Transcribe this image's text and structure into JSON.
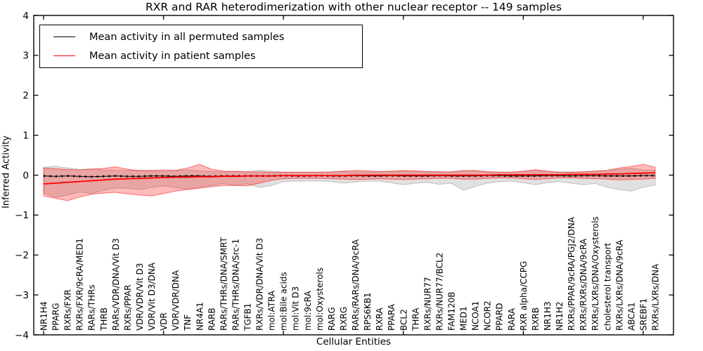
{
  "figure": {
    "title": "RXR and RAR heterodimerization with other nuclear receptor -- 149 samples",
    "xlabel": "Cellular Entities",
    "ylabel": "Inferred Activity"
  },
  "chart_data": {
    "type": "line",
    "title": "RXR and RAR heterodimerization with other nuclear receptor -- 149 samples",
    "xlabel": "Cellular Entities",
    "ylabel": "Inferred Activity",
    "ylim": [
      -4,
      4
    ],
    "yticks": [
      -4,
      -3,
      -2,
      -1,
      0,
      1,
      2,
      3,
      4
    ],
    "grid": false,
    "legend_position": "upper left",
    "categories": [
      "NR1H4",
      "PPARG",
      "RXRs/FXR",
      "RXRs/FXR/9cRA/MED1",
      "RARs/THRs",
      "THRB",
      "RARs/VDR/DNA/Vit D3",
      "RXRs/PPAR",
      "VDR/VDR/Vit D3",
      "VDR/Vit D3/DNA",
      "VDR",
      "VDR/VDR/DNA",
      "TNF",
      "NR4A1",
      "RARB",
      "RARs/THRs/DNA/SMRT",
      "RARs/THRs/DNA/Src-1",
      "TGFB1",
      "RXRs/VDR/DNA/Vit D3",
      "mol:ATRA",
      "mol:Bile acids",
      "mol:Vit D3",
      "mol:9cRA",
      "mol:Oxysterols",
      "RARG",
      "RXRG",
      "RARs/RARs/DNA/9cRA",
      "RPS6KB1",
      "RXRA",
      "PPARA",
      "BCL2",
      "THRA",
      "RXRs/NUR77",
      "RXRs/NUR77/BCL2",
      "FAM120B",
      "MED1",
      "NCOA1",
      "NCOR2",
      "PPARD",
      "RARA",
      "RXR alpha/CCPG",
      "RXRB",
      "NR1H3",
      "NR1H2",
      "RXRs/PPAR/9cRA/PGJ2/DNA",
      "RXRs/RXRs/DNA/9cRA",
      "RXRs/LXRs/DNA/Oxysterols",
      "cholesterol transport",
      "RXRs/LXRs/DNA/9cRA",
      "ABCA1",
      "SREBF1",
      "RXRs/LXRs/DNA"
    ],
    "series": [
      {
        "name": "Mean activity in all permuted samples",
        "color": "#000000",
        "band_color": "#909090",
        "values": [
          -0.02,
          -0.03,
          -0.02,
          -0.03,
          -0.04,
          -0.03,
          -0.02,
          -0.03,
          -0.03,
          -0.02,
          -0.02,
          -0.03,
          -0.02,
          -0.02,
          -0.03,
          -0.02,
          -0.02,
          -0.02,
          -0.02,
          -0.02,
          -0.01,
          -0.02,
          -0.02,
          -0.01,
          -0.02,
          -0.02,
          -0.01,
          -0.02,
          -0.02,
          -0.01,
          -0.02,
          -0.02,
          -0.02,
          -0.01,
          -0.02,
          -0.02,
          -0.02,
          -0.01,
          -0.01,
          -0.02,
          -0.02,
          -0.02,
          -0.01,
          -0.01,
          -0.02,
          -0.01,
          -0.01,
          -0.02,
          -0.02,
          -0.02,
          -0.01,
          -0.01
        ],
        "band_upper": [
          0.2,
          0.22,
          0.18,
          0.14,
          0.16,
          0.13,
          0.12,
          0.12,
          0.13,
          0.11,
          0.09,
          0.11,
          0.13,
          0.11,
          0.09,
          0.08,
          0.1,
          0.09,
          0.12,
          0.1,
          0.08,
          0.08,
          0.08,
          0.08,
          0.08,
          0.09,
          0.08,
          0.08,
          0.08,
          0.09,
          0.1,
          0.09,
          0.08,
          0.09,
          0.08,
          0.12,
          0.1,
          0.08,
          0.08,
          0.08,
          0.09,
          0.11,
          0.09,
          0.08,
          0.08,
          0.09,
          0.1,
          0.12,
          0.15,
          0.17,
          0.13,
          0.12
        ],
        "band_lower": [
          -0.45,
          -0.55,
          -0.5,
          -0.42,
          -0.46,
          -0.38,
          -0.32,
          -0.33,
          -0.36,
          -0.31,
          -0.27,
          -0.31,
          -0.35,
          -0.3,
          -0.26,
          -0.21,
          -0.26,
          -0.22,
          -0.31,
          -0.26,
          -0.16,
          -0.15,
          -0.15,
          -0.15,
          -0.16,
          -0.2,
          -0.17,
          -0.15,
          -0.15,
          -0.19,
          -0.24,
          -0.2,
          -0.18,
          -0.23,
          -0.2,
          -0.38,
          -0.28,
          -0.2,
          -0.16,
          -0.15,
          -0.19,
          -0.24,
          -0.19,
          -0.16,
          -0.2,
          -0.24,
          -0.21,
          -0.3,
          -0.36,
          -0.4,
          -0.3,
          -0.25
        ]
      },
      {
        "name": "Mean activity in patient samples",
        "color": "#ff0000",
        "band_color": "#ff0000",
        "values": [
          -0.22,
          -0.2,
          -0.18,
          -0.16,
          -0.14,
          -0.12,
          -0.1,
          -0.09,
          -0.08,
          -0.07,
          -0.06,
          -0.05,
          -0.05,
          -0.04,
          -0.04,
          -0.03,
          -0.03,
          -0.02,
          -0.02,
          -0.02,
          -0.01,
          -0.01,
          -0.01,
          -0.01,
          -0.01,
          -0.01,
          0,
          0,
          0,
          0,
          0,
          0,
          0,
          0,
          0,
          0,
          0,
          0,
          0.01,
          0.01,
          0.01,
          0.01,
          0.01,
          0.01,
          0.02,
          0.02,
          0.02,
          0.03,
          0.03,
          0.04,
          0.05,
          0.06
        ],
        "band_upper": [
          0.18,
          0.16,
          0.14,
          0.13,
          0.15,
          0.17,
          0.21,
          0.15,
          0.11,
          0.12,
          0.13,
          0.12,
          0.18,
          0.27,
          0.15,
          0.1,
          0.09,
          0.08,
          0.08,
          0.07,
          0.07,
          0.07,
          0.07,
          0.07,
          0.08,
          0.1,
          0.12,
          0.11,
          0.09,
          0.1,
          0.12,
          0.11,
          0.09,
          0.08,
          0.08,
          0.11,
          0.12,
          0.09,
          0.07,
          0.07,
          0.1,
          0.14,
          0.1,
          0.07,
          0.07,
          0.08,
          0.1,
          0.12,
          0.18,
          0.22,
          0.27,
          0.2
        ],
        "band_lower": [
          -0.52,
          -0.58,
          -0.64,
          -0.55,
          -0.48,
          -0.45,
          -0.43,
          -0.47,
          -0.5,
          -0.52,
          -0.46,
          -0.4,
          -0.36,
          -0.33,
          -0.29,
          -0.26,
          -0.26,
          -0.27,
          -0.2,
          -0.13,
          -0.09,
          -0.08,
          -0.08,
          -0.08,
          -0.09,
          -0.1,
          -0.11,
          -0.1,
          -0.09,
          -0.1,
          -0.11,
          -0.1,
          -0.09,
          -0.08,
          -0.08,
          -0.1,
          -0.1,
          -0.08,
          -0.07,
          -0.07,
          -0.09,
          -0.11,
          -0.09,
          -0.07,
          -0.07,
          -0.08,
          -0.09,
          -0.1,
          -0.12,
          -0.11,
          -0.1,
          -0.08
        ]
      }
    ]
  }
}
